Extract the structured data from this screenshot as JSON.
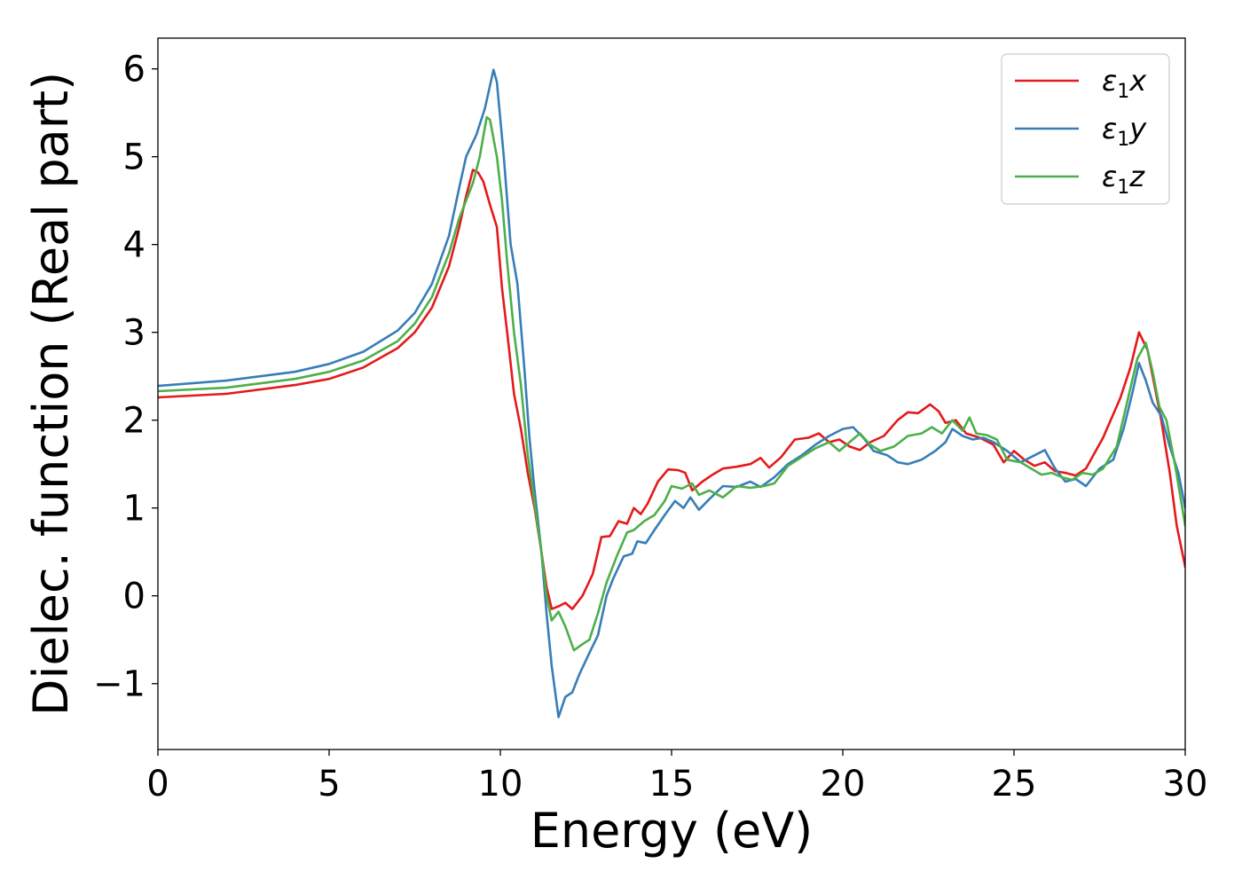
{
  "chart_data": {
    "type": "line",
    "xlabel": "Energy (eV)",
    "ylabel": "Dielec. function (Real part)",
    "xlim": [
      0,
      30
    ],
    "ylim": [
      -1.75,
      6.35
    ],
    "xticks": [
      0,
      5,
      10,
      15,
      20,
      25,
      30
    ],
    "yticks": [
      -1,
      0,
      1,
      2,
      3,
      4,
      5,
      6
    ],
    "grid": false,
    "legend_position": "top-right",
    "series": [
      {
        "name": "ε1x",
        "legend_base": "ε",
        "legend_sub": "1",
        "legend_suffix": "x",
        "color": "#e41a1c",
        "points": [
          [
            0,
            2.26
          ],
          [
            2,
            2.3
          ],
          [
            4,
            2.4
          ],
          [
            5,
            2.47
          ],
          [
            6,
            2.6
          ],
          [
            7,
            2.82
          ],
          [
            7.5,
            3.0
          ],
          [
            8,
            3.28
          ],
          [
            8.5,
            3.75
          ],
          [
            8.8,
            4.2
          ],
          [
            9.0,
            4.55
          ],
          [
            9.2,
            4.85
          ],
          [
            9.35,
            4.82
          ],
          [
            9.5,
            4.72
          ],
          [
            9.7,
            4.45
          ],
          [
            9.9,
            4.2
          ],
          [
            10.05,
            3.5
          ],
          [
            10.2,
            3.0
          ],
          [
            10.4,
            2.3
          ],
          [
            10.6,
            1.9
          ],
          [
            10.8,
            1.4
          ],
          [
            11.0,
            1.0
          ],
          [
            11.2,
            0.5
          ],
          [
            11.35,
            0.1
          ],
          [
            11.5,
            -0.15
          ],
          [
            11.7,
            -0.12
          ],
          [
            11.9,
            -0.08
          ],
          [
            12.1,
            -0.15
          ],
          [
            12.4,
            0.0
          ],
          [
            12.7,
            0.25
          ],
          [
            12.95,
            0.67
          ],
          [
            13.2,
            0.68
          ],
          [
            13.45,
            0.85
          ],
          [
            13.7,
            0.82
          ],
          [
            13.9,
            1.0
          ],
          [
            14.1,
            0.93
          ],
          [
            14.3,
            1.05
          ],
          [
            14.6,
            1.3
          ],
          [
            14.9,
            1.44
          ],
          [
            15.2,
            1.43
          ],
          [
            15.4,
            1.4
          ],
          [
            15.6,
            1.2
          ],
          [
            15.9,
            1.3
          ],
          [
            16.2,
            1.38
          ],
          [
            16.5,
            1.45
          ],
          [
            16.9,
            1.47
          ],
          [
            17.3,
            1.5
          ],
          [
            17.6,
            1.57
          ],
          [
            17.85,
            1.46
          ],
          [
            18.2,
            1.58
          ],
          [
            18.6,
            1.78
          ],
          [
            19.0,
            1.8
          ],
          [
            19.3,
            1.85
          ],
          [
            19.6,
            1.75
          ],
          [
            19.9,
            1.78
          ],
          [
            20.2,
            1.7
          ],
          [
            20.5,
            1.66
          ],
          [
            20.8,
            1.75
          ],
          [
            21.2,
            1.82
          ],
          [
            21.6,
            2.0
          ],
          [
            21.9,
            2.09
          ],
          [
            22.2,
            2.08
          ],
          [
            22.55,
            2.18
          ],
          [
            22.8,
            2.1
          ],
          [
            23.0,
            1.97
          ],
          [
            23.3,
            2.0
          ],
          [
            23.6,
            1.85
          ],
          [
            24.0,
            1.8
          ],
          [
            24.4,
            1.72
          ],
          [
            24.7,
            1.52
          ],
          [
            25.0,
            1.65
          ],
          [
            25.3,
            1.55
          ],
          [
            25.6,
            1.48
          ],
          [
            25.9,
            1.52
          ],
          [
            26.2,
            1.42
          ],
          [
            26.5,
            1.4
          ],
          [
            26.8,
            1.37
          ],
          [
            27.1,
            1.45
          ],
          [
            27.6,
            1.8
          ],
          [
            28.1,
            2.25
          ],
          [
            28.4,
            2.6
          ],
          [
            28.65,
            3.0
          ],
          [
            28.9,
            2.8
          ],
          [
            29.1,
            2.4
          ],
          [
            29.3,
            2.0
          ],
          [
            29.55,
            1.4
          ],
          [
            29.75,
            0.8
          ],
          [
            30.0,
            0.33
          ]
        ]
      },
      {
        "name": "ε1y",
        "legend_base": "ε",
        "legend_sub": "1",
        "legend_suffix": "y",
        "color": "#377eb8",
        "points": [
          [
            0,
            2.39
          ],
          [
            2,
            2.45
          ],
          [
            4,
            2.55
          ],
          [
            5,
            2.64
          ],
          [
            6,
            2.78
          ],
          [
            7,
            3.02
          ],
          [
            7.5,
            3.22
          ],
          [
            8,
            3.55
          ],
          [
            8.5,
            4.1
          ],
          [
            8.8,
            4.65
          ],
          [
            9.0,
            5.0
          ],
          [
            9.3,
            5.25
          ],
          [
            9.55,
            5.55
          ],
          [
            9.8,
            5.99
          ],
          [
            9.9,
            5.85
          ],
          [
            10.1,
            5.0
          ],
          [
            10.3,
            4.0
          ],
          [
            10.5,
            3.55
          ],
          [
            10.7,
            2.6
          ],
          [
            10.85,
            1.8
          ],
          [
            11.0,
            1.2
          ],
          [
            11.2,
            0.5
          ],
          [
            11.35,
            -0.2
          ],
          [
            11.5,
            -0.8
          ],
          [
            11.7,
            -1.38
          ],
          [
            11.9,
            -1.15
          ],
          [
            12.1,
            -1.1
          ],
          [
            12.3,
            -0.9
          ],
          [
            12.6,
            -0.65
          ],
          [
            12.85,
            -0.45
          ],
          [
            13.1,
            0.0
          ],
          [
            13.3,
            0.2
          ],
          [
            13.6,
            0.45
          ],
          [
            13.85,
            0.48
          ],
          [
            14.0,
            0.62
          ],
          [
            14.25,
            0.6
          ],
          [
            14.5,
            0.75
          ],
          [
            14.8,
            0.92
          ],
          [
            15.1,
            1.08
          ],
          [
            15.35,
            1.0
          ],
          [
            15.55,
            1.12
          ],
          [
            15.8,
            0.98
          ],
          [
            16.1,
            1.1
          ],
          [
            16.5,
            1.25
          ],
          [
            16.9,
            1.24
          ],
          [
            17.3,
            1.3
          ],
          [
            17.6,
            1.24
          ],
          [
            18.0,
            1.35
          ],
          [
            18.4,
            1.5
          ],
          [
            18.8,
            1.6
          ],
          [
            19.2,
            1.72
          ],
          [
            19.6,
            1.82
          ],
          [
            20.0,
            1.9
          ],
          [
            20.3,
            1.92
          ],
          [
            20.6,
            1.8
          ],
          [
            20.9,
            1.65
          ],
          [
            21.3,
            1.6
          ],
          [
            21.6,
            1.52
          ],
          [
            21.9,
            1.5
          ],
          [
            22.3,
            1.55
          ],
          [
            22.7,
            1.65
          ],
          [
            23.0,
            1.75
          ],
          [
            23.2,
            1.9
          ],
          [
            23.5,
            1.82
          ],
          [
            23.8,
            1.78
          ],
          [
            24.1,
            1.8
          ],
          [
            24.4,
            1.75
          ],
          [
            24.8,
            1.65
          ],
          [
            25.2,
            1.52
          ],
          [
            25.6,
            1.6
          ],
          [
            25.9,
            1.66
          ],
          [
            26.2,
            1.45
          ],
          [
            26.5,
            1.3
          ],
          [
            26.8,
            1.33
          ],
          [
            27.1,
            1.25
          ],
          [
            27.5,
            1.45
          ],
          [
            27.9,
            1.55
          ],
          [
            28.2,
            1.9
          ],
          [
            28.45,
            2.3
          ],
          [
            28.65,
            2.65
          ],
          [
            28.85,
            2.45
          ],
          [
            29.05,
            2.2
          ],
          [
            29.3,
            2.05
          ],
          [
            29.55,
            1.7
          ],
          [
            29.8,
            1.4
          ],
          [
            30.0,
            1.0
          ]
        ]
      },
      {
        "name": "ε1z",
        "legend_base": "ε",
        "legend_sub": "1",
        "legend_suffix": "z",
        "color": "#4daf4a",
        "points": [
          [
            0,
            2.33
          ],
          [
            2,
            2.37
          ],
          [
            4,
            2.47
          ],
          [
            5,
            2.55
          ],
          [
            6,
            2.68
          ],
          [
            7,
            2.9
          ],
          [
            7.5,
            3.1
          ],
          [
            8,
            3.4
          ],
          [
            8.5,
            3.9
          ],
          [
            8.8,
            4.3
          ],
          [
            9.0,
            4.5
          ],
          [
            9.2,
            4.7
          ],
          [
            9.4,
            5.0
          ],
          [
            9.6,
            5.45
          ],
          [
            9.7,
            5.42
          ],
          [
            9.9,
            5.0
          ],
          [
            10.05,
            4.5
          ],
          [
            10.2,
            3.8
          ],
          [
            10.4,
            3.0
          ],
          [
            10.6,
            2.4
          ],
          [
            10.8,
            1.6
          ],
          [
            11.0,
            1.05
          ],
          [
            11.2,
            0.5
          ],
          [
            11.35,
            0.0
          ],
          [
            11.5,
            -0.28
          ],
          [
            11.7,
            -0.18
          ],
          [
            11.9,
            -0.35
          ],
          [
            12.15,
            -0.62
          ],
          [
            12.4,
            -0.55
          ],
          [
            12.6,
            -0.5
          ],
          [
            12.85,
            -0.2
          ],
          [
            13.1,
            0.15
          ],
          [
            13.4,
            0.45
          ],
          [
            13.7,
            0.72
          ],
          [
            13.9,
            0.75
          ],
          [
            14.2,
            0.85
          ],
          [
            14.5,
            0.92
          ],
          [
            14.8,
            1.08
          ],
          [
            15.0,
            1.25
          ],
          [
            15.3,
            1.22
          ],
          [
            15.6,
            1.28
          ],
          [
            15.8,
            1.15
          ],
          [
            16.1,
            1.2
          ],
          [
            16.5,
            1.12
          ],
          [
            16.9,
            1.25
          ],
          [
            17.3,
            1.23
          ],
          [
            17.7,
            1.25
          ],
          [
            18.0,
            1.28
          ],
          [
            18.4,
            1.48
          ],
          [
            18.8,
            1.58
          ],
          [
            19.2,
            1.68
          ],
          [
            19.6,
            1.75
          ],
          [
            19.9,
            1.65
          ],
          [
            20.2,
            1.75
          ],
          [
            20.5,
            1.85
          ],
          [
            20.8,
            1.72
          ],
          [
            21.1,
            1.65
          ],
          [
            21.5,
            1.7
          ],
          [
            21.9,
            1.82
          ],
          [
            22.3,
            1.85
          ],
          [
            22.6,
            1.92
          ],
          [
            22.9,
            1.85
          ],
          [
            23.2,
            2.0
          ],
          [
            23.5,
            1.88
          ],
          [
            23.7,
            2.03
          ],
          [
            23.9,
            1.85
          ],
          [
            24.2,
            1.83
          ],
          [
            24.5,
            1.78
          ],
          [
            24.8,
            1.55
          ],
          [
            25.2,
            1.52
          ],
          [
            25.5,
            1.45
          ],
          [
            25.8,
            1.38
          ],
          [
            26.1,
            1.4
          ],
          [
            26.4,
            1.35
          ],
          [
            26.7,
            1.32
          ],
          [
            27.0,
            1.4
          ],
          [
            27.3,
            1.38
          ],
          [
            27.6,
            1.45
          ],
          [
            28.0,
            1.7
          ],
          [
            28.3,
            2.2
          ],
          [
            28.6,
            2.7
          ],
          [
            28.85,
            2.88
          ],
          [
            29.05,
            2.55
          ],
          [
            29.25,
            2.15
          ],
          [
            29.45,
            2.0
          ],
          [
            29.7,
            1.5
          ],
          [
            30.0,
            0.8
          ]
        ]
      }
    ]
  }
}
